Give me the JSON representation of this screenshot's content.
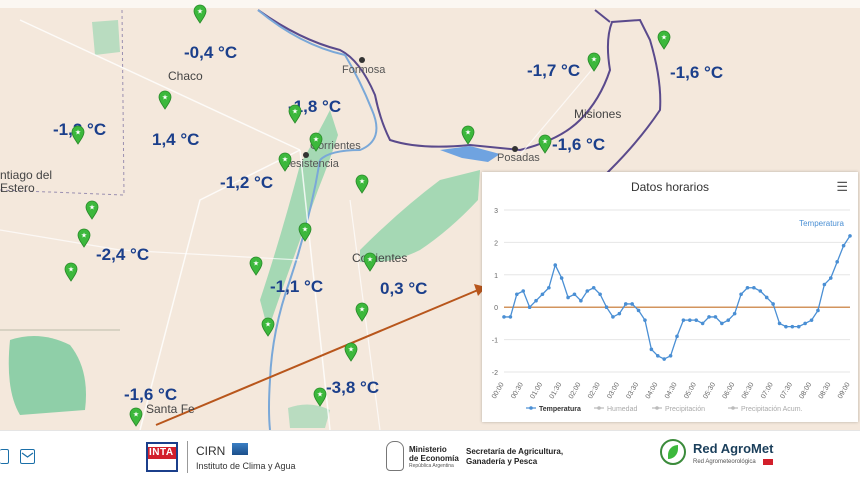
{
  "map": {
    "temperatures": [
      {
        "id": "t1",
        "value": "-0,4 °C"
      },
      {
        "id": "t2",
        "value": "-1,8 °C"
      },
      {
        "id": "t3",
        "value": "-1,7 °C"
      },
      {
        "id": "t4",
        "value": "-1,6 °C"
      },
      {
        "id": "t5",
        "value": "-1,2 °C"
      },
      {
        "id": "t6",
        "value": "1,4 °C"
      },
      {
        "id": "t7",
        "value": "-1,6 °C"
      },
      {
        "id": "t8",
        "value": "-1,2 °C"
      },
      {
        "id": "t9",
        "value": "-2,4 °C"
      },
      {
        "id": "t10",
        "value": "-1,1 °C"
      },
      {
        "id": "t11",
        "value": "0,3 °C"
      },
      {
        "id": "t12",
        "value": "-1,6 °C"
      },
      {
        "id": "t13",
        "value": "-3,8 °C"
      }
    ],
    "places": {
      "chaco": "Chaco",
      "formosa": "Formosa",
      "corrientes_city": "Corrientes",
      "resistencia": "Resistencia",
      "misiones": "Misiones",
      "posadas": "Posadas",
      "corrientes_prov": "Corrientes",
      "santiago": "ntiago del",
      "estero": "Estero",
      "santafe": "Santa Fe"
    },
    "colors": {
      "land": "#f4e8dc",
      "river": "#8fd1a0",
      "wetland": "#a5d8b4",
      "marker": "#3cb83c",
      "border": "#5a4a8c",
      "temp": "#1b3f8b",
      "arrow": "#b8561c"
    }
  },
  "chart": {
    "title": "Datos horarios",
    "menu_icon": "hamburger-menu-icon",
    "series_label": "Temperatura",
    "legend": [
      "Temperatura",
      "Humedad",
      "Precipitación",
      "Precipitación Acum."
    ]
  },
  "chart_data": {
    "type": "line",
    "x": [
      "00:00",
      "00:10",
      "00:20",
      "00:30",
      "00:40",
      "00:50",
      "01:00",
      "01:10",
      "01:20",
      "01:30",
      "01:40",
      "01:50",
      "02:00",
      "02:10",
      "02:20",
      "02:30",
      "02:40",
      "02:50",
      "03:00",
      "03:10",
      "03:20",
      "03:30",
      "03:40",
      "03:50",
      "04:00",
      "04:10",
      "04:20",
      "04:30",
      "04:40",
      "04:50",
      "05:00",
      "05:10",
      "05:20",
      "05:30",
      "05:40",
      "05:50",
      "06:00",
      "06:10",
      "06:20",
      "06:30",
      "06:40",
      "06:50",
      "07:00",
      "07:10",
      "07:20",
      "07:30",
      "07:40",
      "07:50",
      "08:00",
      "08:10",
      "08:20",
      "08:30",
      "08:40",
      "08:50",
      "09:00"
    ],
    "series": [
      {
        "name": "Temperatura",
        "color": "#4a8fd4",
        "values": [
          -0.3,
          -0.3,
          0.4,
          0.5,
          0.0,
          0.2,
          0.4,
          0.6,
          1.3,
          0.9,
          0.3,
          0.4,
          0.2,
          0.5,
          0.6,
          0.4,
          0.0,
          -0.3,
          -0.2,
          0.1,
          0.1,
          -0.1,
          -0.4,
          -1.3,
          -1.5,
          -1.6,
          -1.5,
          -0.9,
          -0.4,
          -0.4,
          -0.4,
          -0.5,
          -0.3,
          -0.3,
          -0.5,
          -0.4,
          -0.2,
          0.4,
          0.6,
          0.6,
          0.5,
          0.3,
          0.1,
          -0.5,
          -0.6,
          -0.6,
          -0.6,
          -0.5,
          -0.4,
          -0.1,
          0.7,
          0.9,
          1.4,
          1.9,
          2.2
        ]
      }
    ],
    "ylim": [
      -2,
      3
    ],
    "yticks": [
      -2,
      -1,
      0,
      1,
      2,
      3
    ],
    "xticks": [
      "00:00",
      "00:30",
      "01:00",
      "01:30",
      "02:00",
      "02:30",
      "03:00",
      "03:30",
      "04:00",
      "04:30",
      "05:00",
      "05:30",
      "06:00",
      "06:30",
      "07:00",
      "07:30",
      "08:00",
      "08:30",
      "09:00"
    ],
    "reference_line": 0,
    "reference_color": "#c8742c",
    "grid": true,
    "legend_placement": "bottom"
  },
  "footer": {
    "inta": "INTA",
    "cirn": "CIRN",
    "cirn_sub": "Instituto de Clima y Agua",
    "ministerio_1": "Ministerio",
    "ministerio_2": "de Economía",
    "ministerio_3": "República Argentina",
    "secretaria_1": "Secretaría de Agricultura,",
    "secretaria_2": "Ganadería y Pesca",
    "red": "Red AgroMet",
    "red_sub": "Red Agrometeorológica"
  }
}
